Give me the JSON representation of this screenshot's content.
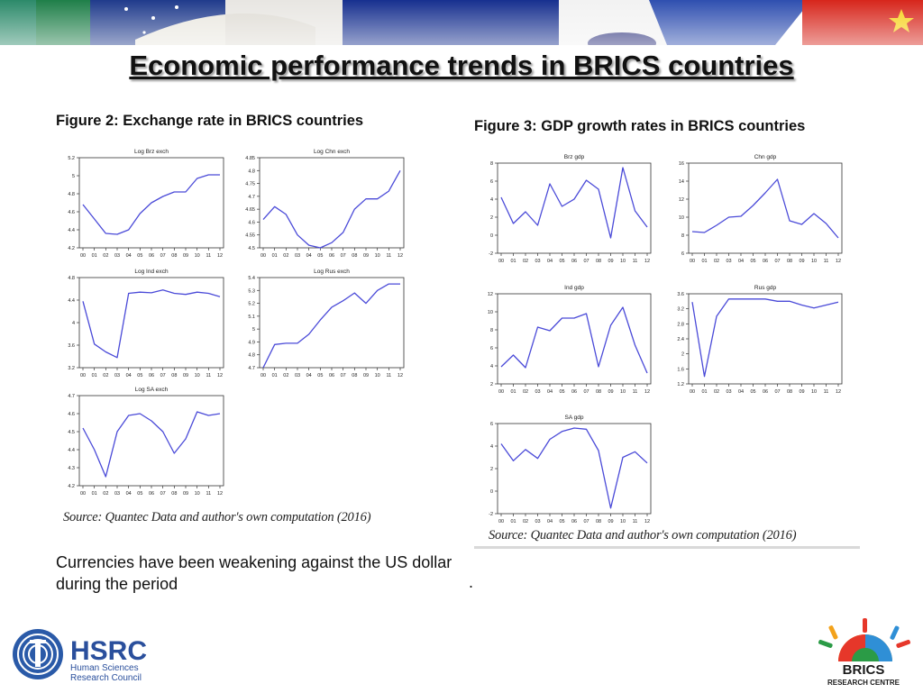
{
  "title": "Economic performance trends in BRICS countries",
  "figure2": {
    "caption": "Figure 2: Exchange rate in BRICS countries",
    "source": "Source: Quantec Data and author's own computation (2016)",
    "note": "Currencies have been weakening against the US dollar during the period"
  },
  "figure3": {
    "caption": "Figure 3: GDP growth rates in BRICS countries",
    "source": "Source: Quantec Data and author's own computation (2016)",
    "note": "."
  },
  "logos": {
    "hsrc_name": "HSRC",
    "hsrc_line1": "Human Sciences",
    "hsrc_line2": "Research Council",
    "brics_name": "BRICS",
    "brics_sub": "RESEARCH CENTRE"
  },
  "chart_data": [
    {
      "type": "line",
      "title": "Log Brz exch",
      "categories": [
        "00",
        "01",
        "02",
        "03",
        "04",
        "05",
        "06",
        "07",
        "08",
        "09",
        "10",
        "11",
        "12"
      ],
      "yticks": [
        4.2,
        4.4,
        4.6,
        4.8,
        5.0,
        5.2
      ],
      "ylim": [
        4.2,
        5.2
      ],
      "series": [
        {
          "values": [
            4.68,
            4.52,
            4.36,
            4.35,
            4.4,
            4.58,
            4.7,
            4.77,
            4.82,
            4.82,
            4.97,
            5.01,
            5.01
          ]
        }
      ]
    },
    {
      "type": "line",
      "title": "Log Chn exch",
      "categories": [
        "00",
        "01",
        "02",
        "03",
        "04",
        "05",
        "06",
        "07",
        "08",
        "09",
        "10",
        "11",
        "12"
      ],
      "yticks": [
        4.5,
        4.55,
        4.6,
        4.65,
        4.7,
        4.75,
        4.8,
        4.85
      ],
      "ylim": [
        4.5,
        4.85
      ],
      "series": [
        {
          "values": [
            4.61,
            4.66,
            4.63,
            4.55,
            4.51,
            4.5,
            4.52,
            4.56,
            4.65,
            4.69,
            4.69,
            4.72,
            4.8
          ]
        }
      ]
    },
    {
      "type": "line",
      "title": "Log Ind exch",
      "categories": [
        "00",
        "01",
        "02",
        "03",
        "04",
        "05",
        "06",
        "07",
        "08",
        "09",
        "10",
        "11",
        "12"
      ],
      "yticks": [
        3.2,
        3.6,
        4.0,
        4.4,
        4.8
      ],
      "ylim": [
        3.2,
        4.8
      ],
      "series": [
        {
          "values": [
            4.38,
            3.62,
            3.48,
            3.38,
            4.52,
            4.54,
            4.53,
            4.58,
            4.52,
            4.5,
            4.54,
            4.52,
            4.46
          ]
        }
      ]
    },
    {
      "type": "line",
      "title": "Log Rus exch",
      "categories": [
        "00",
        "01",
        "02",
        "03",
        "04",
        "05",
        "06",
        "07",
        "08",
        "09",
        "10",
        "11",
        "12"
      ],
      "yticks": [
        4.7,
        4.8,
        4.9,
        5.0,
        5.1,
        5.2,
        5.3,
        5.4
      ],
      "ylim": [
        4.7,
        5.4
      ],
      "series": [
        {
          "values": [
            4.7,
            4.88,
            4.89,
            4.89,
            4.96,
            5.07,
            5.17,
            5.22,
            5.28,
            5.2,
            5.3,
            5.35,
            5.35
          ]
        }
      ]
    },
    {
      "type": "line",
      "title": "Log SA exch",
      "categories": [
        "00",
        "01",
        "02",
        "03",
        "04",
        "05",
        "06",
        "07",
        "08",
        "09",
        "10",
        "11",
        "12"
      ],
      "yticks": [
        4.2,
        4.3,
        4.4,
        4.5,
        4.6,
        4.7
      ],
      "ylim": [
        4.2,
        4.7
      ],
      "series": [
        {
          "values": [
            4.52,
            4.4,
            4.25,
            4.5,
            4.59,
            4.6,
            4.56,
            4.5,
            4.38,
            4.46,
            4.61,
            4.59,
            4.6
          ]
        }
      ]
    },
    {
      "type": "line",
      "title": "Brz gdp",
      "categories": [
        "00",
        "01",
        "02",
        "03",
        "04",
        "05",
        "06",
        "07",
        "08",
        "09",
        "10",
        "11",
        "12"
      ],
      "yticks": [
        -2,
        0,
        2,
        4,
        6,
        8
      ],
      "ylim": [
        -2,
        8
      ],
      "series": [
        {
          "values": [
            4.2,
            1.3,
            2.6,
            1.1,
            5.7,
            3.2,
            4.0,
            6.1,
            5.1,
            -0.3,
            7.5,
            2.7,
            0.9
          ]
        }
      ]
    },
    {
      "type": "line",
      "title": "Chn gdp",
      "categories": [
        "00",
        "01",
        "02",
        "03",
        "04",
        "05",
        "06",
        "07",
        "08",
        "09",
        "10",
        "11",
        "12"
      ],
      "yticks": [
        6,
        8,
        10,
        12,
        14,
        16
      ],
      "ylim": [
        6,
        16
      ],
      "series": [
        {
          "values": [
            8.4,
            8.3,
            9.1,
            10.0,
            10.1,
            11.3,
            12.7,
            14.2,
            9.6,
            9.2,
            10.4,
            9.3,
            7.7
          ]
        }
      ]
    },
    {
      "type": "line",
      "title": "Ind gdp",
      "categories": [
        "00",
        "01",
        "02",
        "03",
        "04",
        "05",
        "06",
        "07",
        "08",
        "09",
        "10",
        "11",
        "12"
      ],
      "yticks": [
        2,
        4,
        6,
        8,
        10,
        12
      ],
      "ylim": [
        2,
        12
      ],
      "series": [
        {
          "values": [
            3.9,
            5.2,
            3.8,
            8.3,
            7.9,
            9.3,
            9.3,
            9.8,
            3.9,
            8.5,
            10.5,
            6.3,
            3.2
          ]
        }
      ]
    },
    {
      "type": "line",
      "title": "Rus gdp",
      "categories": [
        "00",
        "01",
        "02",
        "03",
        "04",
        "05",
        "06",
        "07",
        "08",
        "09",
        "10",
        "11",
        "12"
      ],
      "yticks": [
        1.2,
        1.6,
        2.0,
        2.4,
        2.8,
        3.2,
        3.6
      ],
      "ylim": [
        1.2,
        3.6
      ],
      "series": [
        {
          "values": [
            3.38,
            1.4,
            3.0,
            3.46,
            3.46,
            3.46,
            3.46,
            3.4,
            3.4,
            3.3,
            3.22,
            3.3,
            3.38
          ]
        }
      ]
    },
    {
      "type": "line",
      "title": "SA gdp",
      "categories": [
        "00",
        "01",
        "02",
        "03",
        "04",
        "05",
        "06",
        "07",
        "08",
        "09",
        "10",
        "11",
        "12"
      ],
      "yticks": [
        -2,
        0,
        2,
        4,
        6
      ],
      "ylim": [
        -2,
        6
      ],
      "series": [
        {
          "values": [
            4.2,
            2.7,
            3.7,
            2.9,
            4.6,
            5.3,
            5.6,
            5.5,
            3.6,
            -1.5,
            3.0,
            3.5,
            2.5
          ]
        }
      ]
    }
  ]
}
